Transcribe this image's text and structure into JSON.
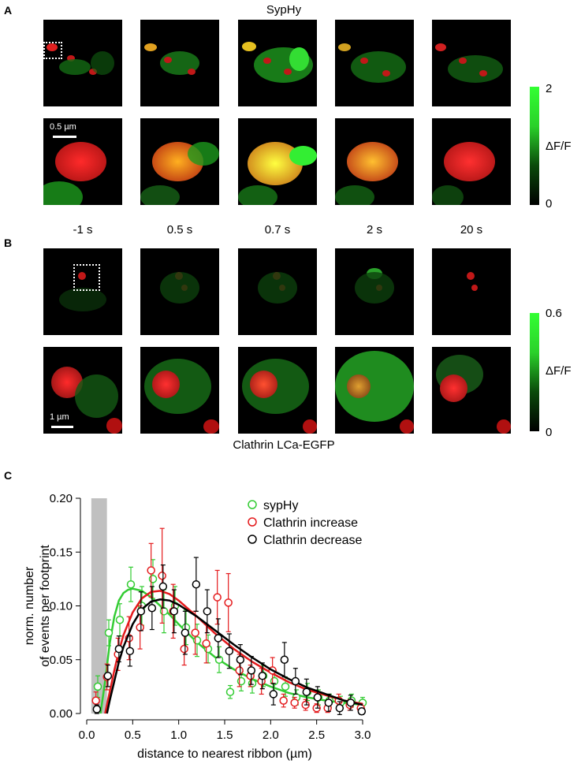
{
  "panels": {
    "a_letter": "A",
    "b_letter": "B",
    "c_letter": "C",
    "a_title": "SypHy",
    "b_caption": "Clathrin LCa-EGFP",
    "a_scalebar": "0.5 µm",
    "b_scalebar": "1 µm"
  },
  "time_labels": [
    "-1 s",
    "0.5 s",
    "0.7 s",
    "2 s",
    "20 s"
  ],
  "colorbar_a": {
    "max": "2",
    "min": "0",
    "label": "ΔF/F"
  },
  "colorbar_b": {
    "max": "0.6",
    "min": "0",
    "label": "ΔF/F"
  },
  "colors": {
    "green": "#33cc33",
    "red": "#e41a1c",
    "black": "#000000",
    "shade": "#c0c0c0"
  },
  "chart_data": {
    "type": "scatter",
    "xlabel": "distance to nearest ribbon (µm)",
    "ylabel_line1": "norm. number",
    "ylabel_line2": "of events per footprint",
    "xlim": [
      0.0,
      3.0
    ],
    "ylim": [
      0.0,
      0.2
    ],
    "xticks": [
      "0.0",
      "0.5",
      "1.0",
      "1.5",
      "2.0",
      "2.5",
      "3.0"
    ],
    "yticks": [
      "0.00",
      "0.05",
      "0.10",
      "0.15",
      "0.20"
    ],
    "shaded_region": [
      0.05,
      0.22
    ],
    "legend_position": "top-right",
    "series": [
      {
        "name": "sypHy",
        "color": "#33cc33",
        "x": [
          0.12,
          0.24,
          0.36,
          0.48,
          0.6,
          0.72,
          0.84,
          0.96,
          1.08,
          1.2,
          1.32,
          1.44,
          1.56,
          1.68,
          1.8,
          1.92,
          2.04,
          2.16,
          2.28,
          2.4,
          2.52,
          2.64,
          2.76,
          2.88,
          3.0
        ],
        "y": [
          0.025,
          0.075,
          0.087,
          0.12,
          0.1,
          0.125,
          0.095,
          0.1,
          0.08,
          0.068,
          0.06,
          0.05,
          0.02,
          0.03,
          0.028,
          0.035,
          0.03,
          0.025,
          0.015,
          0.02,
          0.015,
          0.012,
          0.01,
          0.012,
          0.01
        ],
        "err": [
          0.01,
          0.012,
          0.015,
          0.016,
          0.018,
          0.018,
          0.02,
          0.018,
          0.016,
          0.015,
          0.013,
          0.012,
          0.006,
          0.009,
          0.009,
          0.01,
          0.01,
          0.009,
          0.007,
          0.008,
          0.007,
          0.006,
          0.006,
          0.006,
          0.005
        ],
        "fit_x": [
          0.15,
          0.2,
          0.25,
          0.3,
          0.35,
          0.4,
          0.45,
          0.5,
          0.6,
          0.7,
          0.8,
          0.9,
          1.0,
          1.2,
          1.4,
          1.6,
          1.8,
          2.0,
          2.2,
          2.4,
          2.6,
          2.8,
          3.0
        ],
        "fit_y": [
          0.0,
          0.03,
          0.065,
          0.09,
          0.105,
          0.112,
          0.115,
          0.116,
          0.114,
          0.108,
          0.1,
          0.092,
          0.083,
          0.066,
          0.052,
          0.041,
          0.032,
          0.025,
          0.019,
          0.015,
          0.012,
          0.01,
          0.008
        ]
      },
      {
        "name": "Clathrin increase",
        "color": "#e41a1c",
        "x": [
          0.1,
          0.22,
          0.34,
          0.46,
          0.58,
          0.7,
          0.82,
          0.94,
          1.06,
          1.18,
          1.3,
          1.42,
          1.54,
          1.66,
          1.78,
          1.9,
          2.02,
          2.14,
          2.26,
          2.38,
          2.5,
          2.62,
          2.74,
          2.86,
          2.98
        ],
        "y": [
          0.012,
          0.034,
          0.055,
          0.07,
          0.08,
          0.133,
          0.128,
          0.095,
          0.06,
          0.075,
          0.065,
          0.108,
          0.103,
          0.04,
          0.035,
          0.03,
          0.04,
          0.012,
          0.01,
          0.008,
          0.005,
          0.005,
          0.012,
          0.008,
          0.005
        ],
        "err": [
          0.008,
          0.012,
          0.015,
          0.02,
          0.02,
          0.025,
          0.044,
          0.025,
          0.015,
          0.02,
          0.018,
          0.025,
          0.027,
          0.015,
          0.01,
          0.012,
          0.012,
          0.006,
          0.005,
          0.005,
          0.004,
          0.004,
          0.006,
          0.005,
          0.004
        ],
        "fit_x": [
          0.2,
          0.25,
          0.3,
          0.35,
          0.4,
          0.5,
          0.6,
          0.7,
          0.8,
          0.9,
          1.0,
          1.2,
          1.4,
          1.6,
          1.8,
          2.0,
          2.2,
          2.4,
          2.6,
          2.8,
          3.0
        ],
        "fit_y": [
          0.0,
          0.02,
          0.04,
          0.058,
          0.073,
          0.094,
          0.107,
          0.113,
          0.114,
          0.111,
          0.105,
          0.09,
          0.074,
          0.06,
          0.048,
          0.038,
          0.029,
          0.022,
          0.017,
          0.012,
          0.009
        ]
      },
      {
        "name": "Clathrin decrease",
        "color": "#000000",
        "x": [
          0.11,
          0.23,
          0.35,
          0.47,
          0.59,
          0.71,
          0.83,
          0.95,
          1.07,
          1.19,
          1.31,
          1.43,
          1.55,
          1.67,
          1.79,
          1.91,
          2.03,
          2.15,
          2.27,
          2.39,
          2.51,
          2.63,
          2.75,
          2.87,
          2.99
        ],
        "y": [
          0.004,
          0.035,
          0.06,
          0.058,
          0.095,
          0.098,
          0.118,
          0.095,
          0.075,
          0.12,
          0.095,
          0.07,
          0.058,
          0.05,
          0.04,
          0.035,
          0.018,
          0.05,
          0.03,
          0.02,
          0.015,
          0.01,
          0.005,
          0.01,
          0.002
        ],
        "err": [
          0.004,
          0.01,
          0.012,
          0.014,
          0.018,
          0.02,
          0.02,
          0.02,
          0.02,
          0.025,
          0.02,
          0.018,
          0.016,
          0.014,
          0.013,
          0.012,
          0.01,
          0.016,
          0.012,
          0.012,
          0.01,
          0.008,
          0.006,
          0.007,
          0.003
        ],
        "fit_x": [
          0.22,
          0.25,
          0.3,
          0.35,
          0.4,
          0.5,
          0.6,
          0.7,
          0.8,
          0.9,
          1.0,
          1.2,
          1.4,
          1.6,
          1.8,
          2.0,
          2.2,
          2.4,
          2.6,
          2.8,
          3.0
        ],
        "fit_y": [
          0.0,
          0.012,
          0.03,
          0.048,
          0.062,
          0.083,
          0.097,
          0.104,
          0.106,
          0.105,
          0.101,
          0.09,
          0.077,
          0.064,
          0.052,
          0.041,
          0.032,
          0.024,
          0.018,
          0.012,
          0.008
        ]
      }
    ]
  }
}
